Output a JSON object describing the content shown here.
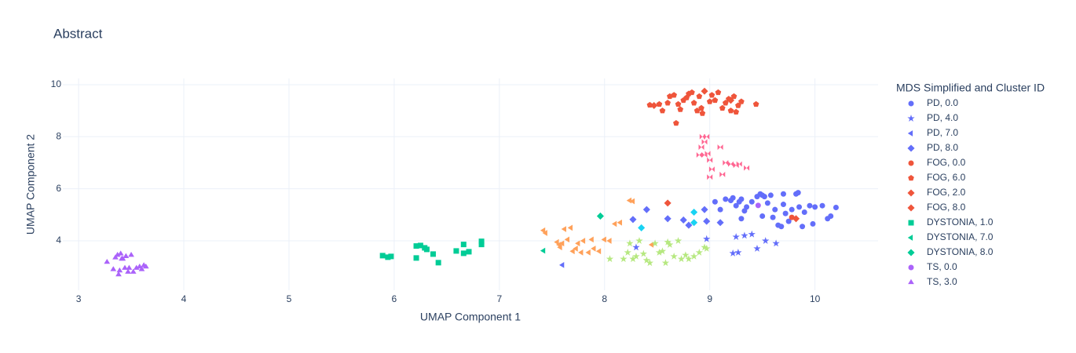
{
  "chart_data": {
    "type": "scatter",
    "title": "Abstract",
    "x_label": "UMAP Component 1",
    "y_label": "UMAP Component 2",
    "legend_title": "MDS Simplified and Cluster ID",
    "xlim": [
      2.85,
      10.6
    ],
    "ylim": [
      2.1,
      10.24
    ],
    "xticks": [
      3,
      4,
      5,
      6,
      7,
      8,
      9,
      10
    ],
    "yticks": [
      4,
      6,
      8,
      10
    ],
    "grid": true,
    "series": [
      {
        "name": "PD, 0.0",
        "color": "#636efa",
        "symbol": "circle",
        "x": [
          9.05,
          9.1,
          9.15,
          9.2,
          9.22,
          9.25,
          9.28,
          9.3,
          9.33,
          9.35,
          9.4,
          9.45,
          9.48,
          9.5,
          9.52,
          9.55,
          9.58,
          9.6,
          9.62,
          9.65,
          9.68,
          9.7,
          9.72,
          9.75,
          9.78,
          9.82,
          9.84,
          9.85,
          9.88,
          9.9,
          9.95,
          9.98,
          10.0,
          10.07,
          10.12,
          10.15,
          10.2,
          9.5,
          9.3,
          9.7
        ],
        "y": [
          5.5,
          5.2,
          5.6,
          5.55,
          5.65,
          5.35,
          5.5,
          5.6,
          5.15,
          5.3,
          5.5,
          5.7,
          5.8,
          4.95,
          5.7,
          5.45,
          5.75,
          4.9,
          5.2,
          4.6,
          4.55,
          5.8,
          5.05,
          4.75,
          5.2,
          5.8,
          5.85,
          5.3,
          4.55,
          5.1,
          5.35,
          4.65,
          5.3,
          5.35,
          4.85,
          4.95,
          5.28,
          5.75,
          4.85,
          5.4
        ]
      },
      {
        "name": "PD, 4.0",
        "color": "#636efa",
        "symbol": "star",
        "x": [
          8.3,
          8.97,
          9.22,
          9.27,
          9.25,
          9.33,
          9.4,
          9.45,
          9.53,
          9.63
        ],
        "y": [
          3.75,
          4.07,
          3.52,
          3.55,
          4.15,
          4.2,
          4.25,
          3.7,
          4.0,
          3.9
        ]
      },
      {
        "name": "PD, 7.0",
        "color": "#636efa",
        "symbol": "triangle-left",
        "x": [
          7.6
        ],
        "y": [
          3.07
        ]
      },
      {
        "name": "PD, 8.0",
        "color": "#636efa",
        "symbol": "diamond",
        "x": [
          8.27,
          8.4,
          8.6,
          8.75,
          8.97,
          9.1,
          8.95,
          8.8
        ],
        "y": [
          4.82,
          5.2,
          4.85,
          4.8,
          4.75,
          4.7,
          5.2,
          4.6
        ]
      },
      {
        "name": "FOG, 0.0",
        "color": "#EF553B",
        "symbol": "circle",
        "x": [
          9.78
        ],
        "y": [
          4.9
        ]
      },
      {
        "name": "FOG, 6.0",
        "color": "#EF553B",
        "symbol": "pentagon",
        "x": [
          8.43,
          8.52,
          8.55,
          8.6,
          8.62,
          8.66,
          8.7,
          8.72,
          8.75,
          8.78,
          8.8,
          8.83,
          8.85,
          8.88,
          8.9,
          8.93,
          9.0,
          9.02,
          9.05,
          9.08,
          9.12,
          9.15,
          9.18,
          9.2,
          9.23,
          9.27,
          9.3,
          9.44,
          8.68,
          8.92,
          9.25
        ],
        "y": [
          9.22,
          9.25,
          9.0,
          9.3,
          9.55,
          9.6,
          9.25,
          9.05,
          9.4,
          9.5,
          9.65,
          9.7,
          9.3,
          9.0,
          9.55,
          8.9,
          9.35,
          9.6,
          9.4,
          9.7,
          9.1,
          9.3,
          9.45,
          9.0,
          9.55,
          9.2,
          9.35,
          9.25,
          8.52,
          9.1,
          8.95
        ]
      },
      {
        "name": "FOG, 2.0",
        "color": "#EF553B",
        "symbol": "diamond",
        "x": [
          8.47,
          8.95,
          9.2
        ],
        "y": [
          9.2,
          9.75,
          9.4
        ]
      },
      {
        "name": "FOG, 8.0",
        "color": "#EF553B",
        "symbol": "diamond",
        "x": [
          8.6,
          9.82
        ],
        "y": [
          5.45,
          4.85
        ]
      },
      {
        "name": "DYSTONIA, 1.0",
        "color": "#00cc96",
        "symbol": "square",
        "x": [
          5.89,
          5.94,
          5.97,
          6.21,
          6.25,
          6.29,
          6.31,
          6.37,
          6.42,
          6.59,
          6.66,
          6.66,
          6.71,
          6.83,
          6.83,
          6.21
        ],
        "y": [
          3.43,
          3.37,
          3.4,
          3.8,
          3.82,
          3.73,
          3.67,
          3.49,
          3.16,
          3.61,
          3.52,
          3.86,
          3.58,
          3.98,
          3.86,
          3.34
        ]
      },
      {
        "name": "DYSTONIA, 7.0",
        "color": "#00cc96",
        "symbol": "triangle-left",
        "x": [
          7.42
        ],
        "y": [
          3.62
        ]
      },
      {
        "name": "DYSTONIA, 8.0",
        "color": "#00cc96",
        "symbol": "diamond",
        "x": [
          7.96
        ],
        "y": [
          4.95
        ]
      },
      {
        "name": "TS, 0.0",
        "color": "#ab63fa",
        "symbol": "circle",
        "x": [
          9.46
        ],
        "y": [
          5.36
        ]
      },
      {
        "name": "TS, 3.0",
        "color": "#ab63fa",
        "symbol": "triangle-up",
        "x": [
          3.27,
          3.33,
          3.35,
          3.37,
          3.39,
          3.4,
          3.42,
          3.44,
          3.45,
          3.47,
          3.5,
          3.52,
          3.55,
          3.58,
          3.6,
          3.62,
          3.64,
          3.38,
          3.48,
          3.41
        ],
        "y": [
          3.18,
          2.9,
          3.35,
          3.45,
          2.85,
          3.5,
          3.3,
          2.95,
          3.4,
          2.8,
          3.45,
          2.8,
          2.95,
          3.0,
          2.9,
          3.05,
          3.0,
          2.7,
          2.95,
          3.3
        ]
      },
      {
        "name": null,
        "color": "#FFA15A",
        "symbol": "triangle-left",
        "x": [
          7.42,
          7.44,
          7.55,
          7.57,
          7.6,
          7.62,
          7.65,
          7.68,
          7.7,
          7.73,
          7.75,
          7.78,
          7.8,
          7.85,
          7.88,
          7.9,
          7.95,
          8.0,
          8.05,
          8.1,
          8.15,
          8.24,
          8.27,
          8.45,
          7.58
        ],
        "y": [
          4.4,
          4.3,
          3.95,
          3.85,
          3.9,
          4.45,
          4.05,
          4.5,
          3.6,
          3.7,
          3.9,
          3.55,
          4.0,
          3.55,
          4.05,
          3.7,
          3.6,
          4.05,
          4.0,
          4.65,
          4.7,
          5.55,
          5.52,
          3.85,
          3.75
        ]
      },
      {
        "name": null,
        "color": "#B6E880",
        "symbol": "star",
        "x": [
          8.05,
          8.18,
          8.22,
          8.27,
          8.3,
          8.33,
          8.37,
          8.4,
          8.43,
          8.48,
          8.52,
          8.55,
          8.58,
          8.62,
          8.66,
          8.7,
          8.73,
          8.77,
          8.8,
          8.85,
          8.9,
          8.95,
          8.97,
          8.24,
          8.6
        ],
        "y": [
          3.3,
          3.3,
          3.55,
          3.3,
          3.4,
          4.0,
          3.5,
          3.25,
          3.15,
          3.9,
          3.55,
          3.6,
          3.15,
          3.85,
          3.4,
          4.0,
          3.3,
          3.45,
          3.3,
          3.4,
          3.55,
          3.75,
          3.7,
          3.9,
          3.95
        ]
      },
      {
        "name": null,
        "color": "#FF6692",
        "symbol": "bowtie",
        "x": [
          8.93,
          8.95,
          8.97,
          8.92,
          8.9,
          8.95,
          9.0,
          9.02,
          9.0,
          9.1,
          9.12,
          9.15,
          9.2,
          9.25,
          9.28,
          9.35,
          8.98
        ],
        "y": [
          8.0,
          7.8,
          8.0,
          7.6,
          7.3,
          7.3,
          7.1,
          6.75,
          6.45,
          7.6,
          6.55,
          7.0,
          6.95,
          6.9,
          6.95,
          6.8,
          7.35
        ]
      },
      {
        "name": null,
        "color": "#19d3f3",
        "symbol": "diamond",
        "x": [
          8.35,
          8.85,
          8.85
        ],
        "y": [
          4.5,
          5.1,
          4.7
        ]
      }
    ]
  }
}
